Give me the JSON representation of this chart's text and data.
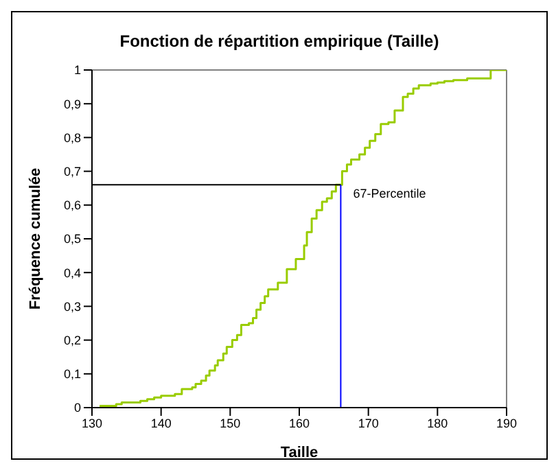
{
  "chart_data": {
    "type": "step",
    "title": "Fonction de répartition empirique (Taille)",
    "xlabel": "Taille",
    "ylabel": "Fréquence cumulée",
    "series": [
      {
        "color": "#99cc00",
        "x": [
          131.1,
          133.5,
          134.3,
          137,
          138,
          139,
          140,
          142,
          143,
          144.5,
          145,
          145.8,
          146.5,
          147,
          147.8,
          148.2,
          149,
          149.5,
          150.3,
          151,
          151.6,
          152.7,
          153.3,
          153.8,
          154.4,
          155,
          155.5,
          156.9,
          158.2,
          159.5,
          160.7,
          161.1,
          161.8,
          162.5,
          163.3,
          164,
          164.7,
          165.3,
          166.2,
          166.9,
          167.5,
          168.7,
          169.5,
          170.2,
          171,
          171.8,
          172.9,
          173.8,
          175,
          175.7,
          176.5,
          177.3,
          179,
          180,
          181,
          182.3,
          184.3,
          187.7,
          190
        ],
        "values": [
          0.005,
          0.01,
          0.015,
          0.02,
          0.025,
          0.03,
          0.035,
          0.04,
          0.055,
          0.06,
          0.07,
          0.08,
          0.095,
          0.11,
          0.125,
          0.14,
          0.16,
          0.18,
          0.2,
          0.215,
          0.245,
          0.25,
          0.265,
          0.29,
          0.31,
          0.33,
          0.35,
          0.37,
          0.41,
          0.44,
          0.48,
          0.52,
          0.56,
          0.585,
          0.61,
          0.62,
          0.64,
          0.66,
          0.7,
          0.72,
          0.735,
          0.75,
          0.77,
          0.79,
          0.81,
          0.84,
          0.845,
          0.88,
          0.92,
          0.93,
          0.945,
          0.955,
          0.96,
          0.963,
          0.967,
          0.97,
          0.975,
          1,
          1
        ]
      }
    ],
    "xlim": [
      130,
      190
    ],
    "xticks": [
      130,
      140,
      150,
      160,
      170,
      180,
      190
    ],
    "ylim": [
      0,
      1
    ],
    "yticks": [
      0,
      {
        "value": 0.1,
        "label": "0,1"
      },
      {
        "value": 0.2,
        "label": "0,2"
      },
      {
        "value": 0.3,
        "label": "0,3"
      },
      {
        "value": 0.4,
        "label": "0,4"
      },
      {
        "value": 0.5,
        "label": "0,5"
      },
      {
        "value": 0.6,
        "label": "0,6"
      },
      {
        "value": 0.7,
        "label": "0,7"
      },
      {
        "value": 0.8,
        "label": "0,8"
      },
      {
        "value": 0.9,
        "label": "0,9"
      },
      1
    ],
    "ref_lines": [
      {
        "axis": "y",
        "value": 0.66,
        "label": "67-Percentile",
        "color": "#000000"
      },
      {
        "axis": "x",
        "value": 166,
        "color": "#0000ff"
      }
    ],
    "line_style": "solid"
  }
}
